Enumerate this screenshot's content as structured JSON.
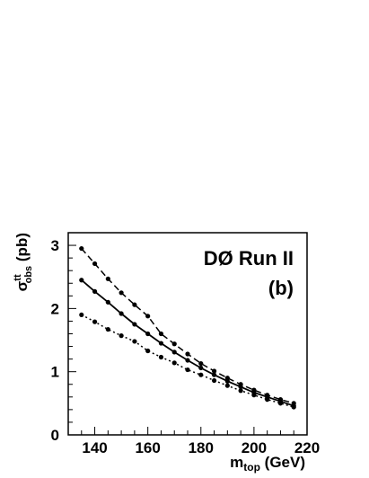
{
  "chart_data": {
    "type": "line",
    "xlabel": {
      "main": "m",
      "sub": "top",
      "unit": " (GeV)"
    },
    "ylabel": {
      "main": "σ",
      "sup": "tt",
      "sub": "obs",
      "unit": " (pb)"
    },
    "xlim": [
      130,
      220
    ],
    "ylim": [
      0,
      3.2
    ],
    "xticks": [
      140,
      160,
      180,
      200,
      220
    ],
    "yticks": [
      0,
      1,
      2,
      3
    ],
    "annotations": [
      "DØ Run II",
      "(b)"
    ],
    "grid": false,
    "legend": "none",
    "x": [
      135,
      140,
      145,
      150,
      155,
      160,
      165,
      170,
      175,
      180,
      185,
      190,
      195,
      200,
      205,
      210,
      215
    ],
    "series": [
      {
        "style": "dashed",
        "values": [
          2.95,
          2.71,
          2.47,
          2.25,
          2.06,
          1.88,
          1.6,
          1.44,
          1.28,
          1.13,
          1.01,
          0.9,
          0.8,
          0.71,
          0.63,
          0.56,
          0.5
        ]
      },
      {
        "style": "solid",
        "values": [
          2.45,
          2.27,
          2.1,
          1.92,
          1.75,
          1.6,
          1.45,
          1.31,
          1.18,
          1.06,
          0.95,
          0.85,
          0.76,
          0.67,
          0.6,
          0.53,
          0.46
        ]
      },
      {
        "style": "dotted",
        "values": [
          1.9,
          1.79,
          1.67,
          1.57,
          1.48,
          1.33,
          1.23,
          1.14,
          1.03,
          0.95,
          0.86,
          0.78,
          0.7,
          0.63,
          0.56,
          0.5,
          0.44
        ]
      }
    ]
  }
}
